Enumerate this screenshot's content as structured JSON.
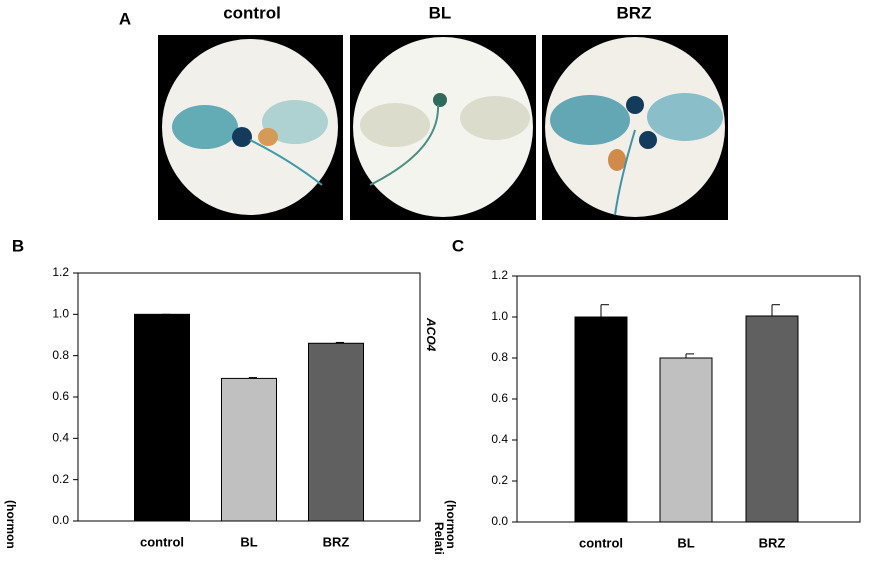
{
  "panel_a": {
    "label": "A",
    "captions": [
      "control",
      "BL",
      "BRZ"
    ]
  },
  "chart_data": [
    {
      "type": "bar",
      "panel_label": "B",
      "ylabel": "(hormon",
      "categories": [
        "control",
        "BL",
        "BRZ"
      ],
      "values": [
        1.0,
        0.69,
        0.86
      ],
      "errors": [
        0.0,
        0.004,
        0.004
      ],
      "colors": [
        "#000000",
        "#c0c0c0",
        "#606060"
      ],
      "ylim": [
        0,
        1.2
      ],
      "yticks": [
        {
          "value": 0,
          "label": "0.0"
        },
        {
          "value": 0.2,
          "label": "0.2"
        },
        {
          "value": 0.4,
          "label": "0.4"
        },
        {
          "value": 0.6,
          "label": "0.6"
        },
        {
          "value": 0.8,
          "label": "0.8"
        },
        {
          "value": 1.0,
          "label": "1.0"
        },
        {
          "value": 1.2,
          "label": "1.2"
        }
      ]
    },
    {
      "type": "bar",
      "panel_label": "C",
      "ylabel_parts": [
        "ACO4",
        "(hormon",
        "Relati"
      ],
      "categories": [
        "control",
        "BL",
        "BRZ"
      ],
      "values": [
        1.0,
        0.8,
        1.005
      ],
      "errors": [
        0.06,
        0.02,
        0.055
      ],
      "colors": [
        "#000000",
        "#c0c0c0",
        "#606060"
      ],
      "ylim": [
        0,
        1.2
      ],
      "yticks": [
        {
          "value": 0,
          "label": "0.0"
        },
        {
          "value": 0.2,
          "label": "0.2"
        },
        {
          "value": 0.4,
          "label": "0.4"
        },
        {
          "value": 0.6,
          "label": "0.6"
        },
        {
          "value": 0.8,
          "label": "0.8"
        },
        {
          "value": 1.0,
          "label": "1.0"
        },
        {
          "value": 1.2,
          "label": "1.2"
        }
      ]
    }
  ]
}
